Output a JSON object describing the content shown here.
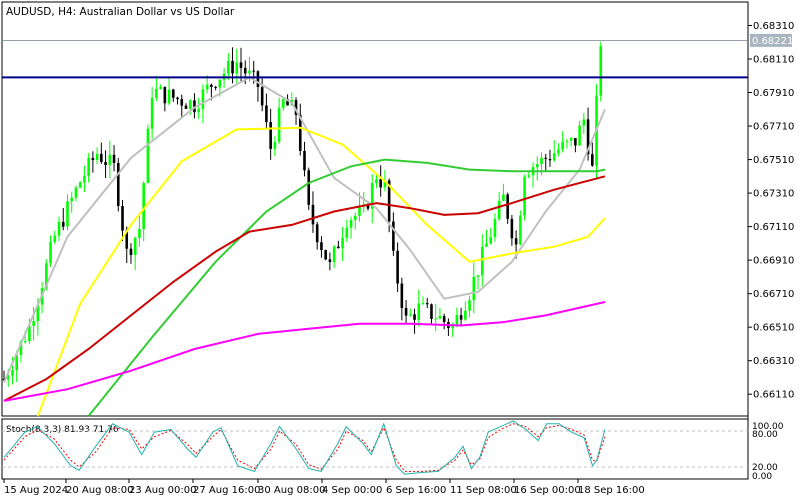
{
  "chart_title": "AUDUSD, H4:  Australian Dollar vs US Dollar",
  "current_price": "0.68221",
  "colors": {
    "bull": "#00ff00",
    "bear": "#000000",
    "ma_fast": "#c0c0c0",
    "ma_yellow": "#ffff00",
    "ma_green": "#32cd32",
    "ma_red": "#cc0000",
    "ma_magenta": "#ff00ff",
    "horizontal_level": "#00008b",
    "stoch_main": "#20b2aa",
    "stoch_signal": "#ff0000"
  },
  "price_axis": {
    "ticks": [
      "0.68310",
      "0.68110",
      "0.67910",
      "0.67710",
      "0.67510",
      "0.67310",
      "0.67110",
      "0.66910",
      "0.66710",
      "0.66510",
      "0.66310",
      "0.66110"
    ]
  },
  "time_axis": {
    "labels": [
      "15 Aug 2024",
      "20 Aug 08:00",
      "23 Aug 00:00",
      "27 Aug 16:00",
      "30 Aug 08:00",
      "4 Sep 00:00",
      "6 Sep 16:00",
      "11 Sep 08:00",
      "16 Sep 00:00",
      "18 Sep 16:00"
    ]
  },
  "stochastic": {
    "label": "Stoch(8,3,3) 81.93 71.76",
    "levels": [
      "100.00",
      "80.00",
      "20.00",
      "0.00"
    ]
  },
  "chart_data": {
    "type": "candlestick",
    "symbol": "AUDUSD",
    "timeframe": "H4",
    "ylim": [
      0.6598,
      0.6845
    ],
    "horizontal_line": 0.68,
    "price_line": 0.68221,
    "close_path": [
      [
        0,
        0.662
      ],
      [
        6,
        0.6651
      ],
      [
        12,
        0.6705
      ],
      [
        18,
        0.6738
      ],
      [
        22,
        0.6755
      ],
      [
        26,
        0.6746
      ],
      [
        29,
        0.6695
      ],
      [
        32,
        0.671
      ],
      [
        35,
        0.6792
      ],
      [
        40,
        0.6788
      ],
      [
        45,
        0.6784
      ],
      [
        50,
        0.6799
      ],
      [
        55,
        0.6809
      ],
      [
        60,
        0.6795
      ],
      [
        63,
        0.6758
      ],
      [
        66,
        0.6785
      ],
      [
        69,
        0.6779
      ],
      [
        72,
        0.672
      ],
      [
        75,
        0.67
      ],
      [
        77,
        0.6687
      ],
      [
        81,
        0.6716
      ],
      [
        85,
        0.6719
      ],
      [
        88,
        0.6742
      ],
      [
        90,
        0.6735
      ],
      [
        92,
        0.6691
      ],
      [
        95,
        0.6655
      ],
      [
        98,
        0.6662
      ],
      [
        102,
        0.6658
      ],
      [
        106,
        0.6651
      ],
      [
        110,
        0.6672
      ],
      [
        114,
        0.67
      ],
      [
        118,
        0.6728
      ],
      [
        121,
        0.67
      ],
      [
        123,
        0.6745
      ],
      [
        127,
        0.675
      ],
      [
        131,
        0.6757
      ],
      [
        135,
        0.6762
      ],
      [
        137,
        0.6775
      ],
      [
        139,
        0.6745
      ],
      [
        141,
        0.6822
      ]
    ],
    "moving_averages": [
      {
        "color": "#c0c0c0",
        "points": [
          [
            0,
            0.6618
          ],
          [
            15,
            0.6705
          ],
          [
            30,
            0.6752
          ],
          [
            45,
            0.6782
          ],
          [
            58,
            0.68
          ],
          [
            68,
            0.6785
          ],
          [
            78,
            0.674
          ],
          [
            88,
            0.6722
          ],
          [
            96,
            0.6697
          ],
          [
            104,
            0.6668
          ],
          [
            112,
            0.6672
          ],
          [
            120,
            0.669
          ],
          [
            128,
            0.672
          ],
          [
            136,
            0.6745
          ],
          [
            142,
            0.6781
          ]
        ]
      },
      {
        "color": "#ffff00",
        "points": [
          [
            8,
            0.6598
          ],
          [
            18,
            0.6665
          ],
          [
            30,
            0.6712
          ],
          [
            42,
            0.675
          ],
          [
            55,
            0.6769
          ],
          [
            70,
            0.677
          ],
          [
            80,
            0.676
          ],
          [
            90,
            0.6738
          ],
          [
            100,
            0.6712
          ],
          [
            110,
            0.669
          ],
          [
            120,
            0.6695
          ],
          [
            130,
            0.6699
          ],
          [
            138,
            0.6705
          ],
          [
            142,
            0.6716
          ]
        ]
      },
      {
        "color": "#32cd32",
        "points": [
          [
            20,
            0.6598
          ],
          [
            35,
            0.6645
          ],
          [
            50,
            0.669
          ],
          [
            62,
            0.672
          ],
          [
            72,
            0.6737
          ],
          [
            82,
            0.6747
          ],
          [
            90,
            0.6751
          ],
          [
            100,
            0.6749
          ],
          [
            110,
            0.6745
          ],
          [
            120,
            0.6744
          ],
          [
            130,
            0.6744
          ],
          [
            140,
            0.6744
          ],
          [
            142,
            0.6745
          ]
        ]
      },
      {
        "color": "#cc0000",
        "points": [
          [
            0,
            0.6607
          ],
          [
            10,
            0.662
          ],
          [
            20,
            0.6638
          ],
          [
            30,
            0.6658
          ],
          [
            40,
            0.6678
          ],
          [
            50,
            0.6696
          ],
          [
            58,
            0.6708
          ],
          [
            68,
            0.6712
          ],
          [
            78,
            0.672
          ],
          [
            88,
            0.6725
          ],
          [
            96,
            0.6722
          ],
          [
            104,
            0.6718
          ],
          [
            112,
            0.6719
          ],
          [
            120,
            0.6725
          ],
          [
            130,
            0.6733
          ],
          [
            142,
            0.6741
          ]
        ]
      },
      {
        "color": "#ff00ff",
        "points": [
          [
            0,
            0.6607
          ],
          [
            15,
            0.6614
          ],
          [
            30,
            0.6625
          ],
          [
            45,
            0.6638
          ],
          [
            60,
            0.6647
          ],
          [
            72,
            0.665
          ],
          [
            84,
            0.6653
          ],
          [
            96,
            0.6653
          ],
          [
            108,
            0.6652
          ],
          [
            118,
            0.6654
          ],
          [
            128,
            0.6658
          ],
          [
            142,
            0.6666
          ]
        ]
      }
    ],
    "stoch_main": [
      [
        0,
        35
      ],
      [
        5,
        80
      ],
      [
        8,
        90
      ],
      [
        12,
        60
      ],
      [
        16,
        20
      ],
      [
        18,
        12
      ],
      [
        22,
        55
      ],
      [
        26,
        95
      ],
      [
        30,
        80
      ],
      [
        33,
        40
      ],
      [
        36,
        80
      ],
      [
        40,
        85
      ],
      [
        44,
        50
      ],
      [
        46,
        35
      ],
      [
        50,
        80
      ],
      [
        52,
        88
      ],
      [
        56,
        20
      ],
      [
        60,
        10
      ],
      [
        64,
        60
      ],
      [
        66,
        90
      ],
      [
        70,
        50
      ],
      [
        73,
        15
      ],
      [
        76,
        10
      ],
      [
        80,
        60
      ],
      [
        82,
        90
      ],
      [
        86,
        60
      ],
      [
        88,
        40
      ],
      [
        91,
        95
      ],
      [
        94,
        20
      ],
      [
        96,
        5
      ],
      [
        100,
        8
      ],
      [
        104,
        10
      ],
      [
        108,
        35
      ],
      [
        110,
        55
      ],
      [
        112,
        15
      ],
      [
        114,
        35
      ],
      [
        116,
        80
      ],
      [
        119,
        90
      ],
      [
        122,
        100
      ],
      [
        125,
        85
      ],
      [
        128,
        65
      ],
      [
        130,
        95
      ],
      [
        133,
        95
      ],
      [
        136,
        80
      ],
      [
        139,
        70
      ],
      [
        141,
        20
      ],
      [
        142,
        30
      ],
      [
        144,
        85
      ]
    ],
    "stoch_signal": [
      [
        0,
        30
      ],
      [
        5,
        72
      ],
      [
        8,
        85
      ],
      [
        12,
        68
      ],
      [
        16,
        30
      ],
      [
        18,
        18
      ],
      [
        22,
        45
      ],
      [
        26,
        88
      ],
      [
        30,
        85
      ],
      [
        33,
        50
      ],
      [
        36,
        72
      ],
      [
        40,
        83
      ],
      [
        44,
        58
      ],
      [
        46,
        42
      ],
      [
        50,
        72
      ],
      [
        52,
        85
      ],
      [
        56,
        30
      ],
      [
        60,
        15
      ],
      [
        64,
        50
      ],
      [
        66,
        82
      ],
      [
        70,
        58
      ],
      [
        73,
        22
      ],
      [
        76,
        14
      ],
      [
        80,
        50
      ],
      [
        82,
        82
      ],
      [
        86,
        65
      ],
      [
        88,
        45
      ],
      [
        91,
        88
      ],
      [
        94,
        30
      ],
      [
        96,
        10
      ],
      [
        100,
        10
      ],
      [
        104,
        12
      ],
      [
        108,
        30
      ],
      [
        110,
        48
      ],
      [
        112,
        22
      ],
      [
        114,
        32
      ],
      [
        116,
        70
      ],
      [
        119,
        85
      ],
      [
        122,
        95
      ],
      [
        125,
        90
      ],
      [
        128,
        72
      ],
      [
        130,
        88
      ],
      [
        133,
        92
      ],
      [
        136,
        85
      ],
      [
        139,
        75
      ],
      [
        141,
        30
      ],
      [
        142,
        28
      ],
      [
        144,
        72
      ]
    ]
  }
}
